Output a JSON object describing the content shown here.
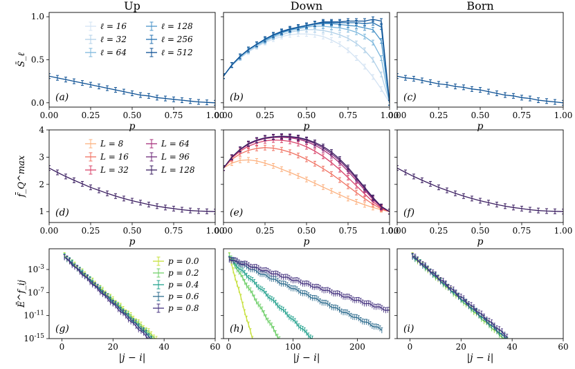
{
  "columns": [
    "Up",
    "Down",
    "Born"
  ],
  "chart_data": [
    {
      "type": "line",
      "panel": "(a)",
      "column": "Up",
      "xlabel": "p",
      "ylabel": "S̄_ℓ",
      "xlim": [
        0,
        1
      ],
      "ylim": [
        -0.05,
        1.05
      ],
      "xticks": [
        "0.00",
        "0.25",
        "0.50",
        "0.75",
        "1.00"
      ],
      "yticks": [
        "0.0",
        "0.5",
        "1.0"
      ],
      "legend": [
        "ℓ = 16",
        "ℓ = 32",
        "ℓ = 64",
        "ℓ = 128",
        "ℓ = 256",
        "ℓ = 512"
      ],
      "x": [
        0,
        0.05,
        0.1,
        0.15,
        0.2,
        0.25,
        0.3,
        0.35,
        0.4,
        0.45,
        0.5,
        0.55,
        0.6,
        0.65,
        0.7,
        0.75,
        0.8,
        0.85,
        0.9,
        0.95,
        1.0
      ],
      "series": [
        {
          "name": "ℓ = 512",
          "values": [
            0.31,
            0.29,
            0.27,
            0.25,
            0.23,
            0.21,
            0.19,
            0.17,
            0.15,
            0.13,
            0.11,
            0.09,
            0.08,
            0.06,
            0.05,
            0.04,
            0.03,
            0.02,
            0.01,
            0.005,
            0.0
          ]
        }
      ]
    },
    {
      "type": "line",
      "panel": "(b)",
      "column": "Down",
      "xlabel": "p",
      "ylabel": "",
      "xlim": [
        0,
        1
      ],
      "ylim": [
        -0.05,
        1.05
      ],
      "xticks": [
        "0.00",
        "0.25",
        "0.50",
        "0.75",
        "1.00"
      ],
      "yticks": [],
      "x": [
        0,
        0.05,
        0.1,
        0.15,
        0.2,
        0.25,
        0.3,
        0.35,
        0.4,
        0.45,
        0.5,
        0.55,
        0.6,
        0.65,
        0.7,
        0.75,
        0.8,
        0.85,
        0.9,
        0.95,
        1.0
      ],
      "series": [
        {
          "name": "ℓ = 16",
          "values": [
            0.31,
            0.43,
            0.52,
            0.59,
            0.65,
            0.7,
            0.74,
            0.77,
            0.79,
            0.8,
            0.8,
            0.79,
            0.77,
            0.73,
            0.68,
            0.61,
            0.52,
            0.42,
            0.3,
            0.16,
            0.0
          ]
        },
        {
          "name": "ℓ = 32",
          "values": [
            0.31,
            0.43,
            0.52,
            0.6,
            0.66,
            0.71,
            0.76,
            0.79,
            0.82,
            0.84,
            0.85,
            0.85,
            0.84,
            0.82,
            0.79,
            0.75,
            0.69,
            0.61,
            0.5,
            0.33,
            0.0
          ]
        },
        {
          "name": "ℓ = 64",
          "values": [
            0.31,
            0.44,
            0.53,
            0.61,
            0.67,
            0.72,
            0.77,
            0.81,
            0.84,
            0.86,
            0.88,
            0.89,
            0.89,
            0.88,
            0.87,
            0.85,
            0.82,
            0.77,
            0.7,
            0.52,
            0.0
          ]
        },
        {
          "name": "ℓ = 128",
          "values": [
            0.31,
            0.44,
            0.54,
            0.62,
            0.68,
            0.73,
            0.78,
            0.82,
            0.85,
            0.87,
            0.89,
            0.91,
            0.92,
            0.92,
            0.91,
            0.9,
            0.89,
            0.87,
            0.85,
            0.72,
            0.0
          ]
        },
        {
          "name": "ℓ = 256",
          "values": [
            0.31,
            0.44,
            0.54,
            0.62,
            0.68,
            0.74,
            0.79,
            0.82,
            0.85,
            0.88,
            0.9,
            0.92,
            0.93,
            0.93,
            0.93,
            0.93,
            0.93,
            0.92,
            0.93,
            0.88,
            0.0
          ]
        },
        {
          "name": "ℓ = 512",
          "values": [
            0.31,
            0.44,
            0.54,
            0.62,
            0.68,
            0.74,
            0.79,
            0.83,
            0.86,
            0.88,
            0.9,
            0.92,
            0.94,
            0.94,
            0.94,
            0.95,
            0.95,
            0.95,
            0.97,
            0.95,
            0.0
          ]
        }
      ]
    },
    {
      "type": "line",
      "panel": "(c)",
      "column": "Born",
      "xlabel": "p",
      "ylabel": "",
      "xlim": [
        0,
        1
      ],
      "ylim": [
        -0.05,
        1.05
      ],
      "xticks": [
        "0.00",
        "0.25",
        "0.50",
        "0.75",
        "1.00"
      ],
      "yticks": [],
      "x": [
        0,
        0.05,
        0.1,
        0.15,
        0.2,
        0.25,
        0.3,
        0.35,
        0.4,
        0.45,
        0.5,
        0.55,
        0.6,
        0.65,
        0.7,
        0.75,
        0.8,
        0.85,
        0.9,
        0.95,
        1.0
      ],
      "series": [
        {
          "name": "ℓ = 512",
          "values": [
            0.31,
            0.29,
            0.28,
            0.26,
            0.24,
            0.22,
            0.21,
            0.19,
            0.18,
            0.16,
            0.15,
            0.13,
            0.11,
            0.09,
            0.08,
            0.06,
            0.05,
            0.03,
            0.02,
            0.01,
            0.0
          ]
        }
      ]
    },
    {
      "type": "line",
      "panel": "(d)",
      "column": "Up",
      "xlabel": "p",
      "ylabel": "f̄_Q^max",
      "xlim": [
        0,
        1
      ],
      "ylim": [
        0.6,
        4.0
      ],
      "xticks": [
        "0.00",
        "0.25",
        "0.50",
        "0.75",
        "1.00"
      ],
      "yticks": [
        "1",
        "2",
        "3",
        "4"
      ],
      "legend": [
        "L = 8",
        "L = 16",
        "L = 32",
        "L = 64",
        "L = 96",
        "L = 128"
      ],
      "x": [
        0,
        0.05,
        0.1,
        0.15,
        0.2,
        0.25,
        0.3,
        0.35,
        0.4,
        0.45,
        0.5,
        0.55,
        0.6,
        0.65,
        0.7,
        0.75,
        0.8,
        0.85,
        0.9,
        0.95,
        1.0
      ],
      "series": [
        {
          "name": "L = 128",
          "values": [
            2.6,
            2.44,
            2.29,
            2.15,
            2.02,
            1.89,
            1.78,
            1.67,
            1.57,
            1.48,
            1.4,
            1.33,
            1.26,
            1.2,
            1.15,
            1.11,
            1.07,
            1.04,
            1.02,
            1.01,
            1.0
          ]
        }
      ]
    },
    {
      "type": "line",
      "panel": "(e)",
      "column": "Down",
      "xlabel": "p",
      "ylabel": "",
      "xlim": [
        0,
        1
      ],
      "ylim": [
        0.6,
        4.0
      ],
      "xticks": [
        "0.00",
        "0.25",
        "0.50",
        "0.75",
        "1.00"
      ],
      "yticks": [],
      "x": [
        0,
        0.05,
        0.1,
        0.15,
        0.2,
        0.25,
        0.3,
        0.35,
        0.4,
        0.45,
        0.5,
        0.55,
        0.6,
        0.65,
        0.7,
        0.75,
        0.8,
        0.85,
        0.9,
        0.95,
        1.0
      ],
      "series": [
        {
          "name": "L = 8",
          "values": [
            2.6,
            2.78,
            2.88,
            2.9,
            2.86,
            2.78,
            2.68,
            2.56,
            2.44,
            2.31,
            2.18,
            2.04,
            1.9,
            1.76,
            1.62,
            1.48,
            1.36,
            1.25,
            1.15,
            1.07,
            1.0
          ]
        },
        {
          "name": "L = 16",
          "values": [
            2.6,
            2.92,
            3.12,
            3.25,
            3.32,
            3.35,
            3.33,
            3.27,
            3.18,
            3.06,
            2.92,
            2.76,
            2.58,
            2.38,
            2.16,
            1.93,
            1.7,
            1.48,
            1.27,
            1.1,
            1.0
          ]
        },
        {
          "name": "L = 32",
          "values": [
            2.6,
            2.97,
            3.22,
            3.4,
            3.52,
            3.6,
            3.63,
            3.62,
            3.58,
            3.5,
            3.38,
            3.22,
            3.03,
            2.8,
            2.54,
            2.25,
            1.95,
            1.65,
            1.36,
            1.13,
            1.0
          ]
        },
        {
          "name": "L = 64",
          "values": [
            2.6,
            2.99,
            3.27,
            3.47,
            3.6,
            3.68,
            3.72,
            3.73,
            3.71,
            3.66,
            3.57,
            3.44,
            3.27,
            3.05,
            2.79,
            2.48,
            2.14,
            1.79,
            1.45,
            1.16,
            1.0
          ]
        },
        {
          "name": "L = 96",
          "values": [
            2.6,
            3.0,
            3.28,
            3.49,
            3.62,
            3.7,
            3.74,
            3.75,
            3.74,
            3.7,
            3.62,
            3.5,
            3.34,
            3.13,
            2.87,
            2.56,
            2.21,
            1.85,
            1.49,
            1.18,
            1.0
          ]
        },
        {
          "name": "L = 128",
          "values": [
            2.6,
            3.0,
            3.29,
            3.5,
            3.63,
            3.71,
            3.75,
            3.77,
            3.76,
            3.72,
            3.65,
            3.54,
            3.39,
            3.19,
            2.93,
            2.62,
            2.26,
            1.89,
            1.52,
            1.19,
            1.0
          ]
        }
      ]
    },
    {
      "type": "line",
      "panel": "(f)",
      "column": "Born",
      "xlabel": "p",
      "ylabel": "",
      "xlim": [
        0,
        1
      ],
      "ylim": [
        0.6,
        4.0
      ],
      "xticks": [
        "0.00",
        "0.25",
        "0.50",
        "0.75",
        "1.00"
      ],
      "yticks": [],
      "x": [
        0,
        0.05,
        0.1,
        0.15,
        0.2,
        0.25,
        0.3,
        0.35,
        0.4,
        0.45,
        0.5,
        0.55,
        0.6,
        0.65,
        0.7,
        0.75,
        0.8,
        0.85,
        0.9,
        0.95,
        1.0
      ],
      "series": [
        {
          "name": "L = 128",
          "values": [
            2.6,
            2.44,
            2.29,
            2.15,
            2.02,
            1.89,
            1.78,
            1.67,
            1.57,
            1.48,
            1.4,
            1.33,
            1.26,
            1.2,
            1.15,
            1.11,
            1.07,
            1.04,
            1.02,
            1.01,
            1.0
          ]
        }
      ]
    },
    {
      "type": "line",
      "panel": "(g)",
      "column": "Up",
      "yscale": "log",
      "xlabel": "|j − i|",
      "ylabel": "Ē^f_ij",
      "xlim": [
        -5,
        60
      ],
      "ylim_log10": [
        -15,
        0.6
      ],
      "xticks": [
        "0",
        "20",
        "40",
        "60"
      ],
      "yticks": [
        "10^-3",
        "10^-7",
        "10^-11",
        "10^-15"
      ],
      "legend": [
        "p = 0.0",
        "p = 0.2",
        "p = 0.4",
        "p = 0.6",
        "p = 0.8"
      ],
      "series": [
        {
          "name": "p = 0.0",
          "x_range": [
            1,
            37
          ],
          "log10_start": -0.3,
          "log10_slope": -0.4
        },
        {
          "name": "p = 0.2",
          "x_range": [
            1,
            36
          ],
          "log10_start": -0.3,
          "log10_slope": -0.41
        },
        {
          "name": "p = 0.4",
          "x_range": [
            1,
            35
          ],
          "log10_start": -0.3,
          "log10_slope": -0.42
        },
        {
          "name": "p = 0.6",
          "x_range": [
            1,
            35
          ],
          "log10_start": -0.3,
          "log10_slope": -0.42
        },
        {
          "name": "p = 0.8",
          "x_range": [
            1,
            34
          ],
          "log10_start": -0.4,
          "log10_slope": -0.43
        }
      ]
    },
    {
      "type": "line",
      "panel": "(h)",
      "column": "Down",
      "yscale": "log",
      "xlabel": "|j − i|",
      "ylabel": "",
      "xlim": [
        -8,
        250
      ],
      "ylim_log10": [
        -15,
        0.6
      ],
      "xticks": [
        "0",
        "100",
        "200"
      ],
      "yticks": [],
      "series": [
        {
          "name": "p = 0.0",
          "x_range": [
            1,
            38
          ],
          "log10_start": -0.3,
          "log10_slope": -0.4
        },
        {
          "name": "p = 0.2",
          "x_range": [
            1,
            80
          ],
          "log10_start": -0.5,
          "log10_slope": -0.185
        },
        {
          "name": "p = 0.4",
          "x_range": [
            1,
            130
          ],
          "log10_start": -1.0,
          "log10_slope": -0.108
        },
        {
          "name": "p = 0.6",
          "x_range": [
            1,
            240
          ],
          "log10_start": -1.1,
          "log10_slope": -0.052
        },
        {
          "name": "p = 0.8",
          "x_range": [
            1,
            250
          ],
          "log10_start": -1.2,
          "log10_slope": -0.036
        }
      ]
    },
    {
      "type": "line",
      "panel": "(i)",
      "column": "Born",
      "yscale": "log",
      "xlabel": "|j − i|",
      "ylabel": "",
      "xlim": [
        -5,
        60
      ],
      "ylim_log10": [
        -15,
        0.6
      ],
      "xticks": [
        "0",
        "20",
        "40",
        "60"
      ],
      "yticks": [],
      "series": [
        {
          "name": "p = 0.0",
          "x_range": [
            1,
            38
          ],
          "log10_start": -0.3,
          "log10_slope": -0.4
        },
        {
          "name": "p = 0.2",
          "x_range": [
            1,
            38
          ],
          "log10_start": -0.3,
          "log10_slope": -0.4
        },
        {
          "name": "p = 0.4",
          "x_range": [
            1,
            38
          ],
          "log10_start": -0.3,
          "log10_slope": -0.39
        },
        {
          "name": "p = 0.6",
          "x_range": [
            1,
            38
          ],
          "log10_start": -0.3,
          "log10_slope": -0.39
        },
        {
          "name": "p = 0.8",
          "x_range": [
            1,
            38
          ],
          "log10_start": -0.2,
          "log10_slope": -0.38
        }
      ]
    }
  ],
  "palettes": {
    "row1": [
      "#d3e3f3",
      "#b0d0e8",
      "#7cb7dc",
      "#4a93c8",
      "#2470b0",
      "#0b4f93"
    ],
    "row2": [
      "#fcb07e",
      "#f07060",
      "#d8436a",
      "#a62e7a",
      "#6e2a78",
      "#3a1d60"
    ],
    "row3": [
      "#c6e03a",
      "#6fcf6a",
      "#21a08c",
      "#2e6c8e",
      "#45327f"
    ]
  }
}
